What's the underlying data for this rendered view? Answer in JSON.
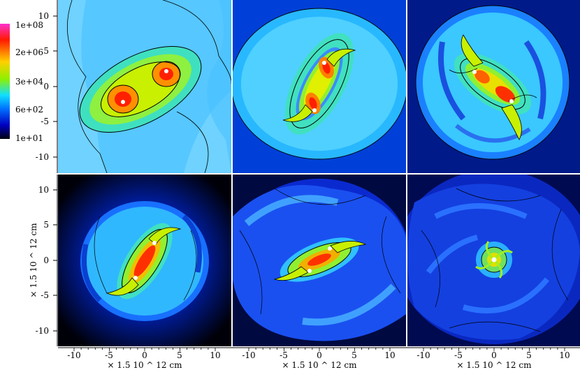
{
  "colorbar": {
    "labels": [
      "1e+08",
      "2e+06",
      "3e+04",
      "6e+02",
      "1e+01"
    ],
    "stops": [
      "#ff30d0",
      "#ff1a00",
      "#ffd000",
      "#8ef000",
      "#10e0ff",
      "#0070ff",
      "#0000c0",
      "#000010"
    ]
  },
  "left_axis": {
    "ticks": [
      "10",
      "5",
      "0",
      "-5",
      "-10"
    ]
  },
  "bottom_axis": {
    "ticks": [
      "-10",
      "-5",
      "0",
      "5",
      "10"
    ]
  },
  "axis_unit_label": "× 1.5 10 ^ 12 cm",
  "panel_count": 6
}
